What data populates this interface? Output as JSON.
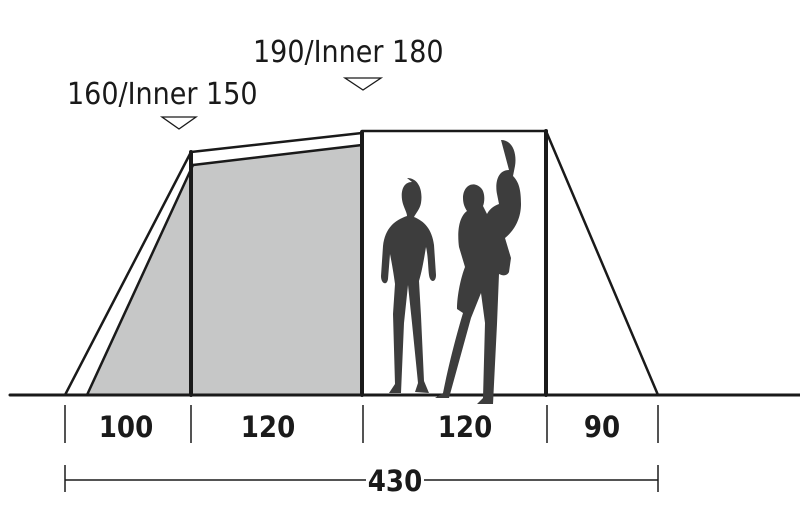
{
  "height_labels": {
    "left": "160/Inner 150",
    "center": "190/Inner 180"
  },
  "segment_widths": [
    "100",
    "120",
    "120",
    "90"
  ],
  "total_width": "430",
  "colors": {
    "line": "#1a1a1a",
    "inner_fill": "#c6c7c7",
    "silhouette": "#3d3d3d"
  }
}
